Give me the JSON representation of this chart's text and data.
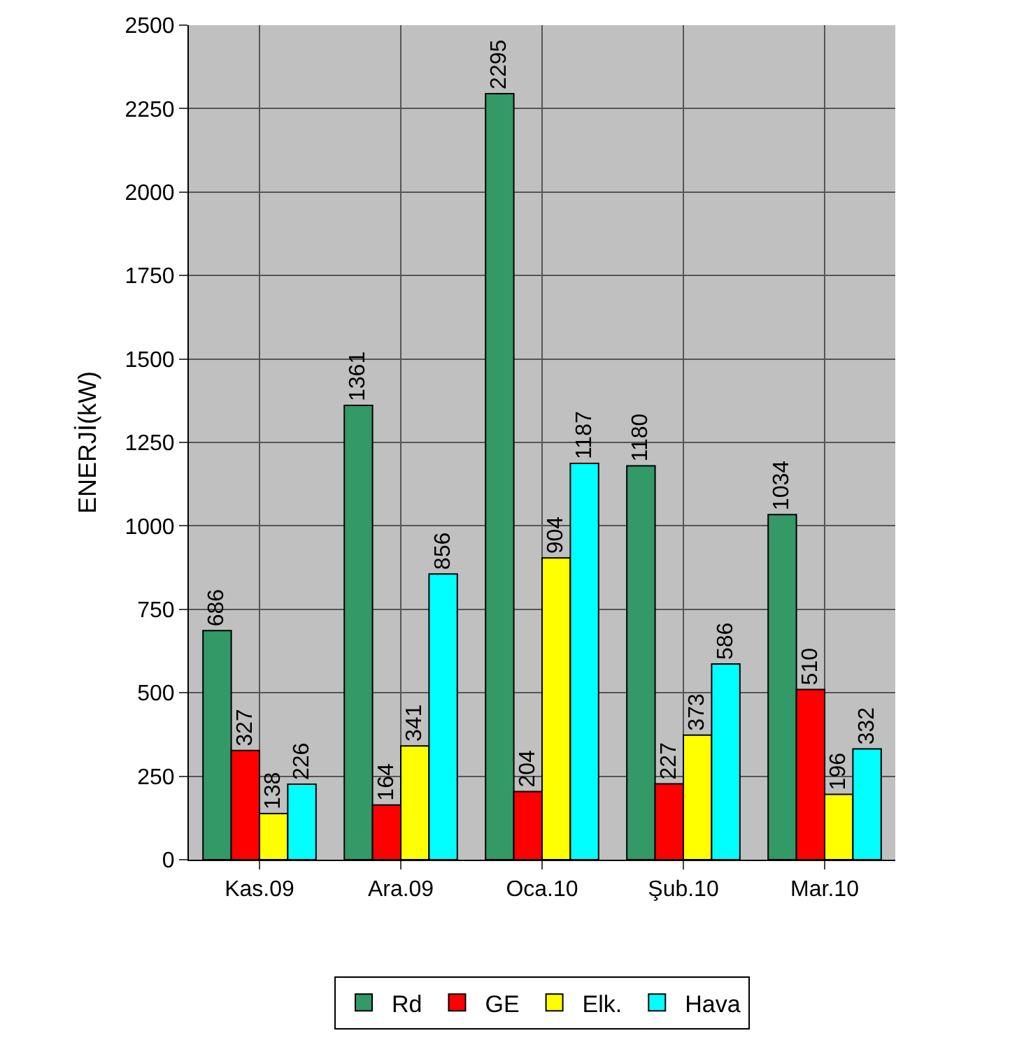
{
  "chart_data": {
    "type": "bar",
    "ylabel": "ENERJİ(kW)",
    "categories": [
      "Kas.09",
      "Ara.09",
      "Oca.10",
      "Şub.10",
      "Mar.10"
    ],
    "series": [
      {
        "name": "Rd",
        "color": "#339966",
        "values": [
          686,
          1361,
          2295,
          1180,
          1034
        ]
      },
      {
        "name": "GE",
        "color": "#ff0000",
        "values": [
          327,
          164,
          204,
          227,
          510
        ]
      },
      {
        "name": "Elk.",
        "color": "#ffff00",
        "values": [
          138,
          341,
          904,
          373,
          196
        ]
      },
      {
        "name": "Hava",
        "color": "#00ffff",
        "values": [
          226,
          856,
          1187,
          586,
          332
        ]
      }
    ],
    "ylim": [
      0,
      2500
    ],
    "yticks": [
      0,
      250,
      500,
      750,
      1000,
      1250,
      1500,
      1750,
      2000,
      2250,
      2500
    ],
    "grid": true,
    "legend": "bottom",
    "data_labels": true
  }
}
